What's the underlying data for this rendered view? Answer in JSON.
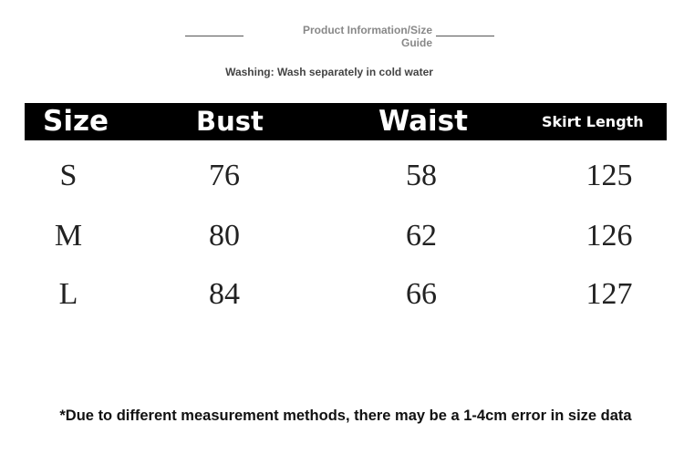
{
  "header": {
    "title": "Product Information/Size Guide",
    "washing": "Washing: Wash separately in cold water"
  },
  "table": {
    "columns": [
      "Size",
      "Bust",
      "Waist",
      "Skirt Length"
    ],
    "rows": [
      [
        "S",
        "76",
        "58",
        "125"
      ],
      [
        "M",
        "80",
        "62",
        "126"
      ],
      [
        "L",
        "84",
        "66",
        "127"
      ]
    ]
  },
  "footer": {
    "note": "*Due to different measurement methods, there may be a 1-4cm error in size data"
  }
}
